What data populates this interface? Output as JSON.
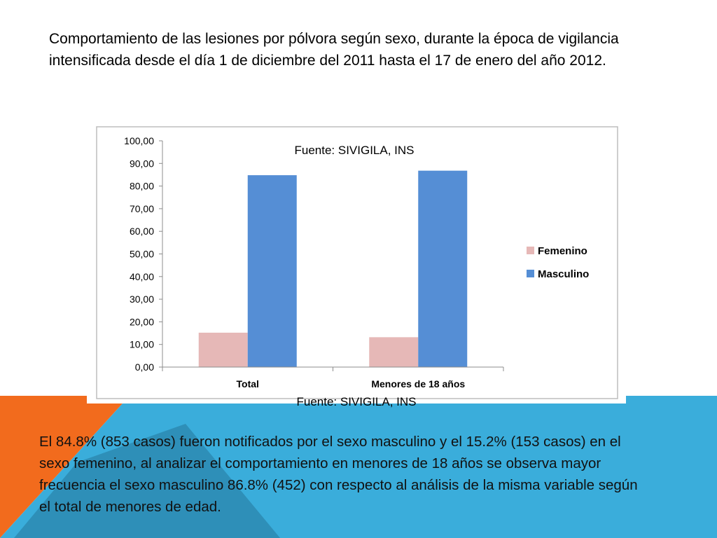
{
  "slide": {
    "title": "Comportamiento de las lesiones por pólvora según sexo, durante la época de vigilancia intensificada desde el día 1 de diciembre del 2011 hasta el 17 de enero del año 2012.",
    "body": "El 84.8% (853 casos) fueron notificados por el sexo masculino y el 15.2% (153 casos) en el sexo femenino, al analizar el comportamiento en menores de 18 años se observa mayor frecuencia el sexo masculino 86.8% (452) con respecto al análisis de la misma variable según el total de menores de edad.",
    "colors": {
      "orange": "#f26b1d",
      "blue": "#3aaddb",
      "teal": "#2e8fb8"
    }
  },
  "chart_data": {
    "type": "bar",
    "title": "Fuente: SIVIGILA, INS",
    "source_below": "Fuente: SIVIGILA, INS",
    "categories": [
      "Total",
      "Menores de 18 años"
    ],
    "series": [
      {
        "name": "Femenino",
        "values": [
          15.2,
          13.2
        ],
        "color": "#e6b8b7"
      },
      {
        "name": "Masculino",
        "values": [
          84.8,
          86.8
        ],
        "color": "#558ed5"
      }
    ],
    "ylim": [
      0,
      100
    ],
    "yticks": [
      "0,00",
      "10,00",
      "20,00",
      "30,00",
      "40,00",
      "50,00",
      "60,00",
      "70,00",
      "80,00",
      "90,00",
      "100,00"
    ],
    "legend_position": "right",
    "grid": false
  }
}
